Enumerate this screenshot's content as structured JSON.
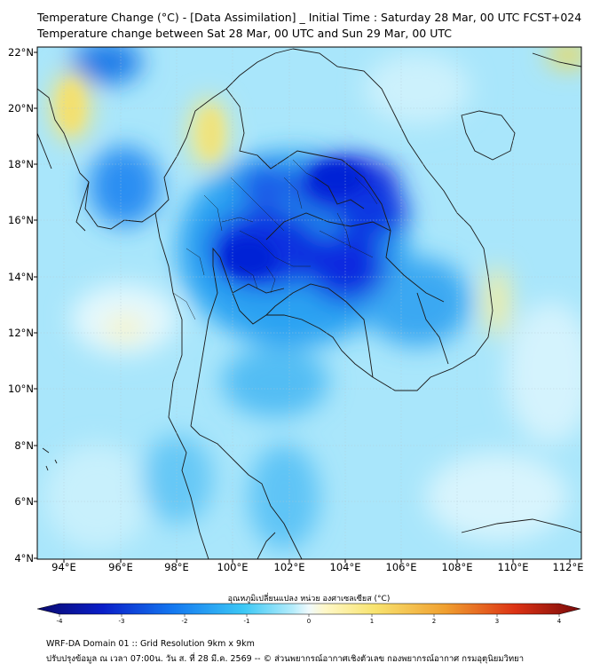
{
  "header": {
    "title_line1": "Temperature Change (°C) - [Data Assimilation] _ Initial Time : Saturday 28 Mar, 00 UTC FCST+024",
    "title_line2": "Temperature change between Sat 28 Mar, 00 UTC and Sun 29 Mar, 00 UTC"
  },
  "map": {
    "lat_labels": [
      "22°N",
      "20°N",
      "18°N",
      "16°N",
      "14°N",
      "12°N",
      "10°N",
      "8°N",
      "6°N",
      "4°N"
    ],
    "lon_labels": [
      "94°E",
      "96°E",
      "98°E",
      "100°E",
      "102°E",
      "104°E",
      "106°E",
      "108°E",
      "110°E",
      "112°E"
    ],
    "lat_range": [
      4,
      22.3
    ],
    "lon_range": [
      93,
      112.3
    ],
    "colors": {
      "base": "#a9e6fb",
      "cooling_strong": "#0a22dc",
      "cooling_moderate": "#1f8cf0",
      "warming": "#f7ec86",
      "border": "#1a1a1a"
    }
  },
  "colorbar": {
    "label": "อุณหภูมิเปลี่ยนแปลง หน่วย องศาเซลเซียส (°C)",
    "ticks": [
      "-4",
      "-3",
      "-2",
      "-1",
      "0",
      "1",
      "2",
      "3",
      "4"
    ],
    "range": [
      -4,
      4
    ]
  },
  "footer": {
    "line1": "WRF-DA Domain 01 :: Grid Resolution 9km x 9km",
    "line2": "ปรับปรุงข้อมูล ณ เวลา 07:00น. วัน ส. ที่ 28 มี.ค. 2569 -- © ส่วนพยากรณ์อากาศเชิงตัวเลข กองพยากรณ์อากาศ กรมอุตุนิยมวิทยา"
  }
}
